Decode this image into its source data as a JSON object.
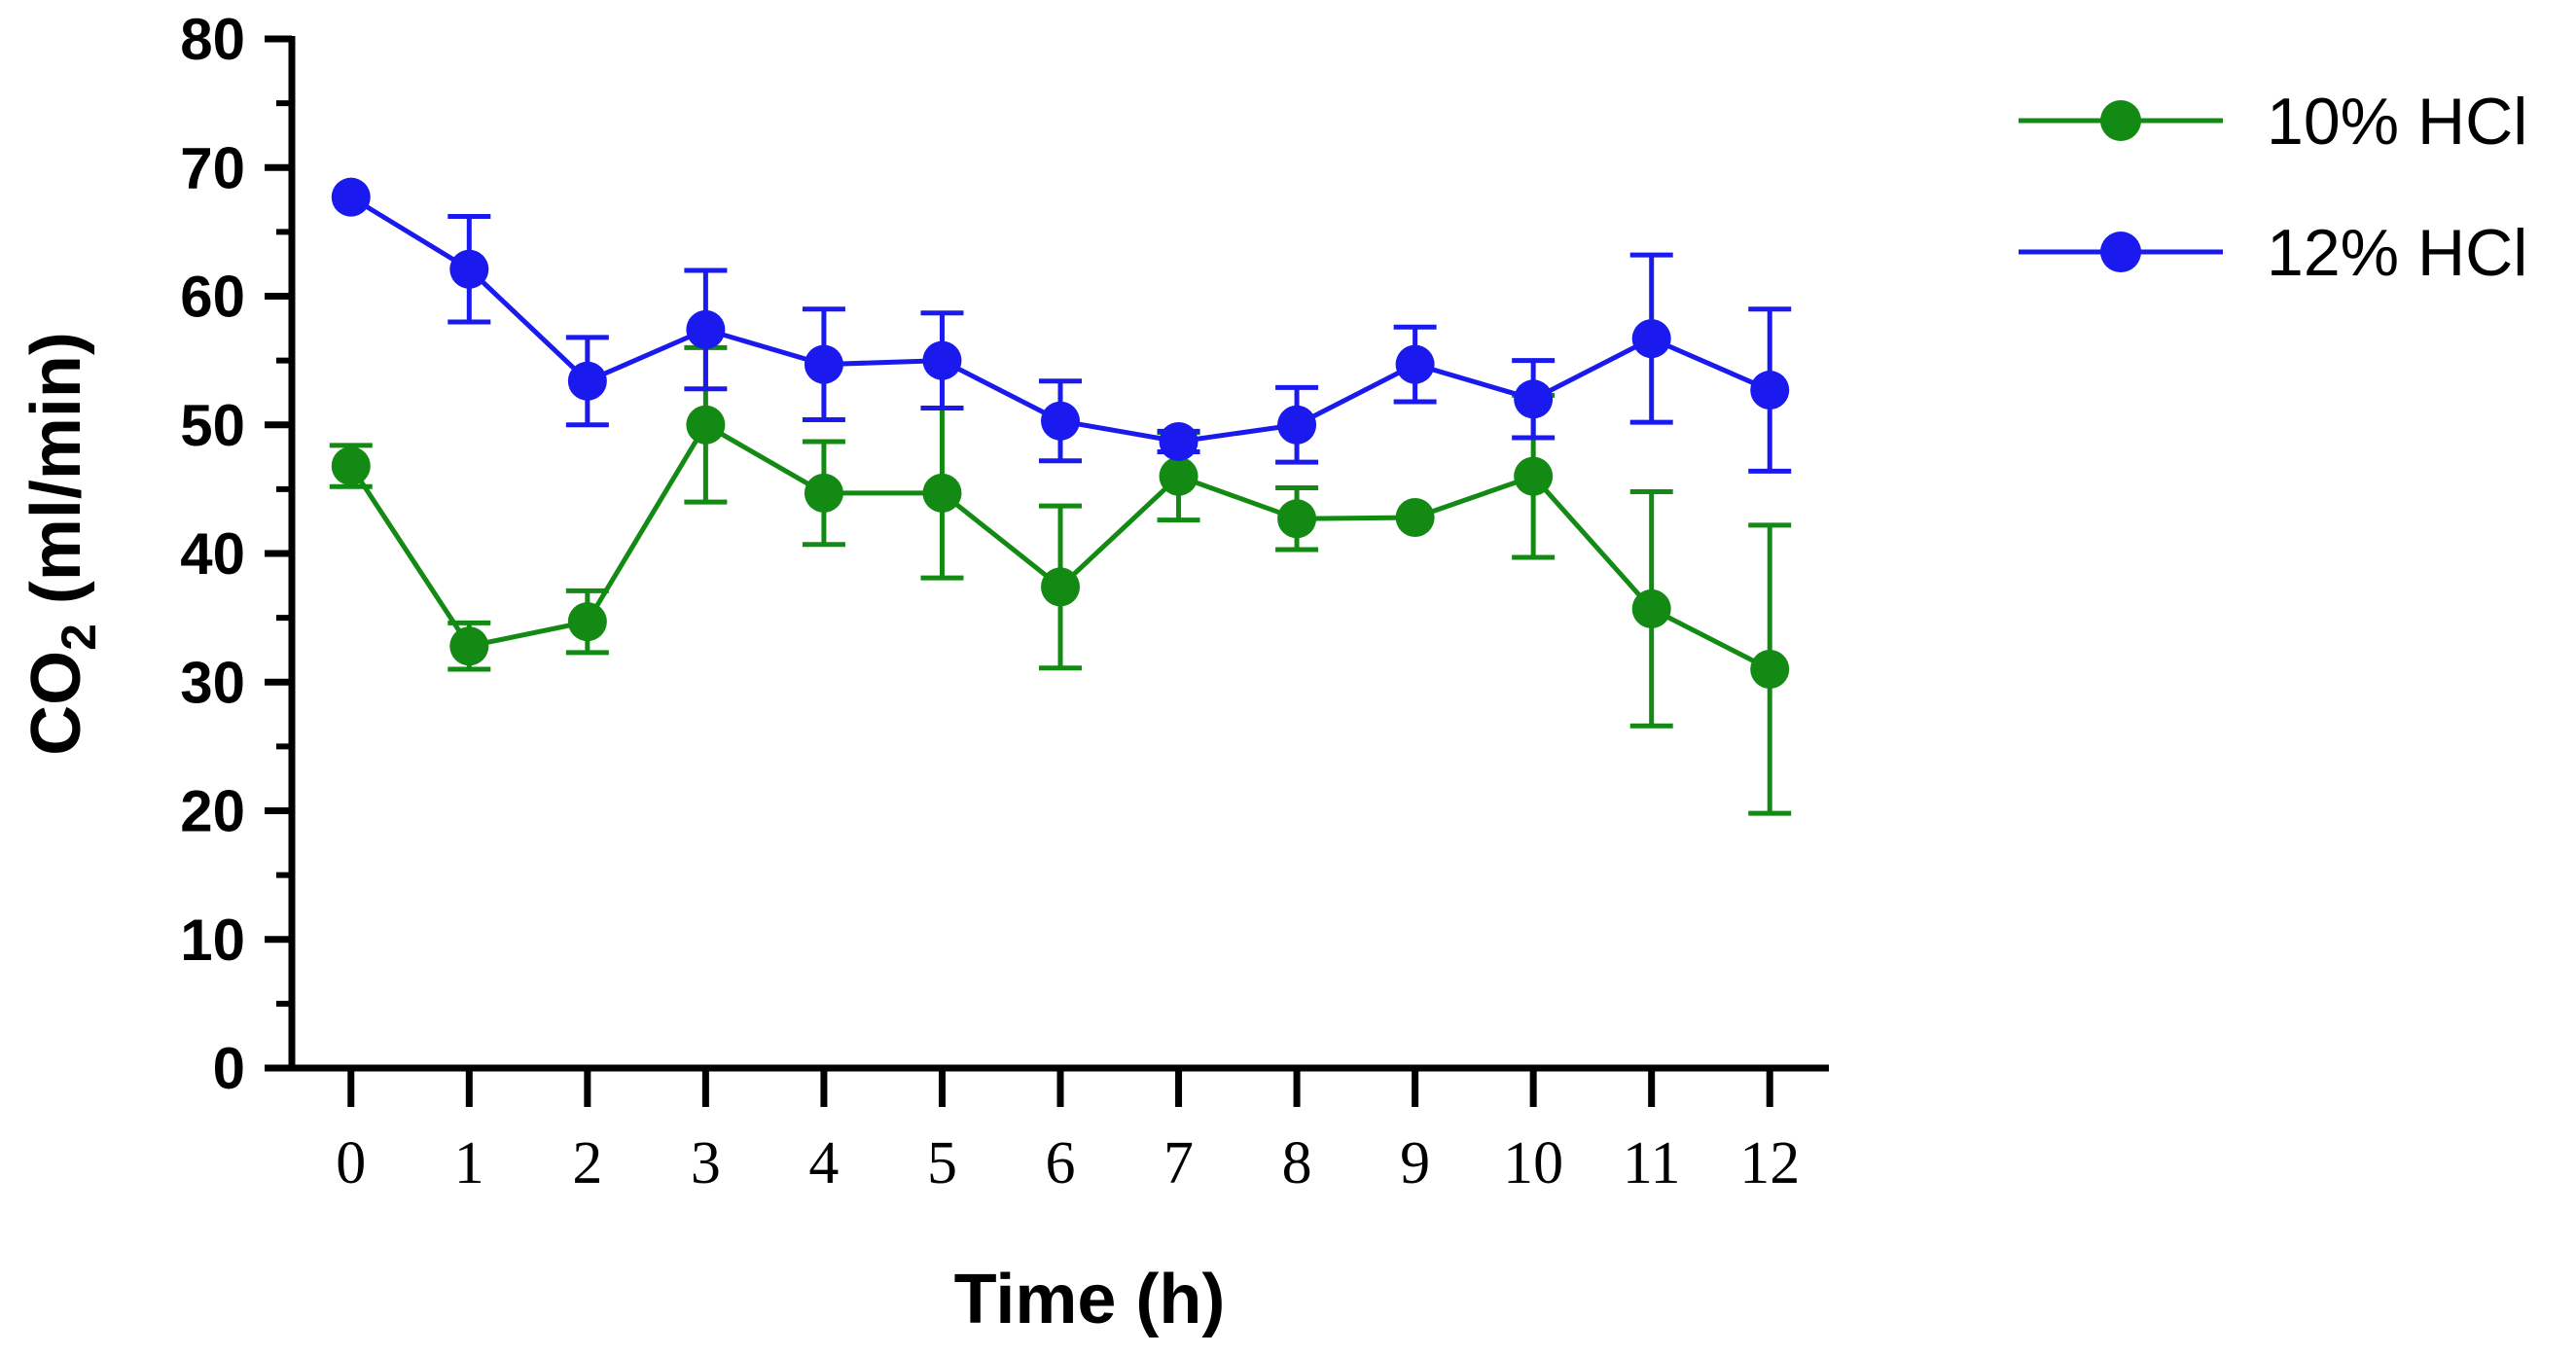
{
  "chart_data": {
    "type": "line",
    "title": "",
    "xlabel": "Time (h)",
    "ylabel": {
      "main": "CO",
      "subscript": "2",
      "unit": " (ml/min)"
    },
    "x": [
      0,
      1,
      2,
      3,
      4,
      5,
      6,
      7,
      8,
      9,
      10,
      11,
      12
    ],
    "x_tick_labels": [
      "0",
      "1",
      "2",
      "3",
      "4",
      "5",
      "6",
      "7",
      "8",
      "9",
      "10",
      "11",
      "12"
    ],
    "y_ticks": [
      0,
      10,
      20,
      30,
      40,
      50,
      60,
      70,
      80
    ],
    "y_tick_labels": [
      "0",
      "10",
      "20",
      "30",
      "40",
      "50",
      "60",
      "70",
      "80"
    ],
    "ylim": [
      0,
      80
    ],
    "xlim": [
      -0.5,
      12.5
    ],
    "grid": false,
    "legend_position": "top-right, outside plot",
    "series": [
      {
        "name": "10% HCl",
        "color": "#138a13",
        "values": [
          46.8,
          32.8,
          34.7,
          50.0,
          44.7,
          44.7,
          37.4,
          46.0,
          42.7,
          42.8,
          46.0,
          35.7,
          31.0
        ],
        "errors": [
          1.6,
          1.8,
          2.4,
          6.0,
          4.0,
          6.6,
          6.3,
          3.4,
          2.4,
          0.0,
          6.3,
          9.1,
          11.2
        ]
      },
      {
        "name": "12% HCl",
        "color": "#1a1aee",
        "values": [
          67.7,
          62.1,
          53.4,
          57.4,
          54.7,
          55.0,
          50.3,
          48.7,
          50.0,
          54.7,
          52.0,
          56.7,
          52.7
        ],
        "errors": [
          0.0,
          4.1,
          3.4,
          4.6,
          4.3,
          3.7,
          3.1,
          0.8,
          2.9,
          2.9,
          3.0,
          6.5,
          6.3
        ]
      }
    ]
  }
}
